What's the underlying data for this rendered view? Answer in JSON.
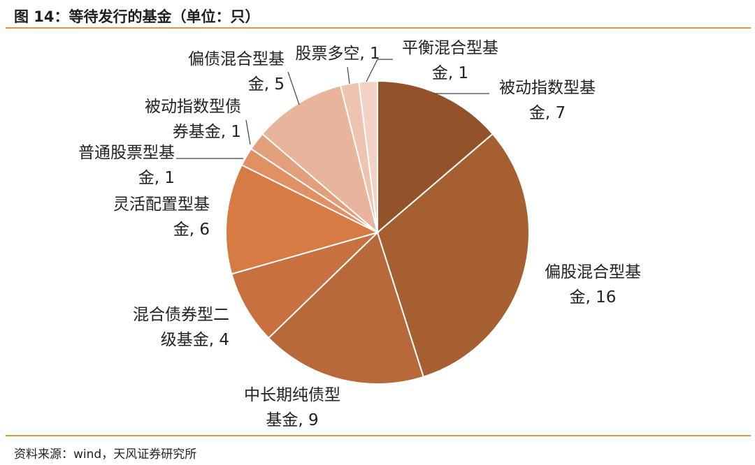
{
  "title": "图 14：等待发行的基金（单位：只）",
  "source": "资料来源：wind，天风证券研究所",
  "chart_data": {
    "type": "pie",
    "title": "图 14：等待发行的基金（单位：只）",
    "start_angle_deg": 0,
    "direction": "clockwise",
    "slices": [
      {
        "name": "被动指数型基金",
        "value": 7,
        "color": "#93522a",
        "label_lines": [
          "被动指数型基",
          "金, 7"
        ]
      },
      {
        "name": "偏股混合型基金",
        "value": 16,
        "color": "#a55f30",
        "label_lines": [
          "偏股混合型基",
          "金, 16"
        ]
      },
      {
        "name": "中长期纯债型基金",
        "value": 9,
        "color": "#b8693a",
        "label_lines": [
          "中长期纯债型",
          "基金, 9"
        ]
      },
      {
        "name": "混合债券型二级基金",
        "value": 4,
        "color": "#c87040",
        "label_lines": [
          "混合债券型二",
          "级基金, 4"
        ]
      },
      {
        "name": "灵活配置型基金",
        "value": 6,
        "color": "#d77b45",
        "label_lines": [
          "灵活配置型基",
          "金, 6"
        ]
      },
      {
        "name": "普通股票型基金",
        "value": 1,
        "color": "#e09062",
        "label_lines": [
          "普通股票型基",
          "金, 1"
        ]
      },
      {
        "name": "被动指数型债券基金",
        "value": 1,
        "color": "#e39f7c",
        "label_lines": [
          "被动指数型债",
          "券基金, 1"
        ]
      },
      {
        "name": "偏债混合型基金",
        "value": 5,
        "color": "#e8b49c",
        "label_lines": [
          "偏债混合型基",
          "金, 5"
        ]
      },
      {
        "name": "股票多空",
        "value": 1,
        "color": "#eec3b0",
        "label_lines": [
          "股票多空, 1"
        ]
      },
      {
        "name": "平衡混合型基金",
        "value": 1,
        "color": "#f1d2c5",
        "label_lines": [
          "平衡混合型基",
          "金, 1"
        ]
      }
    ]
  }
}
